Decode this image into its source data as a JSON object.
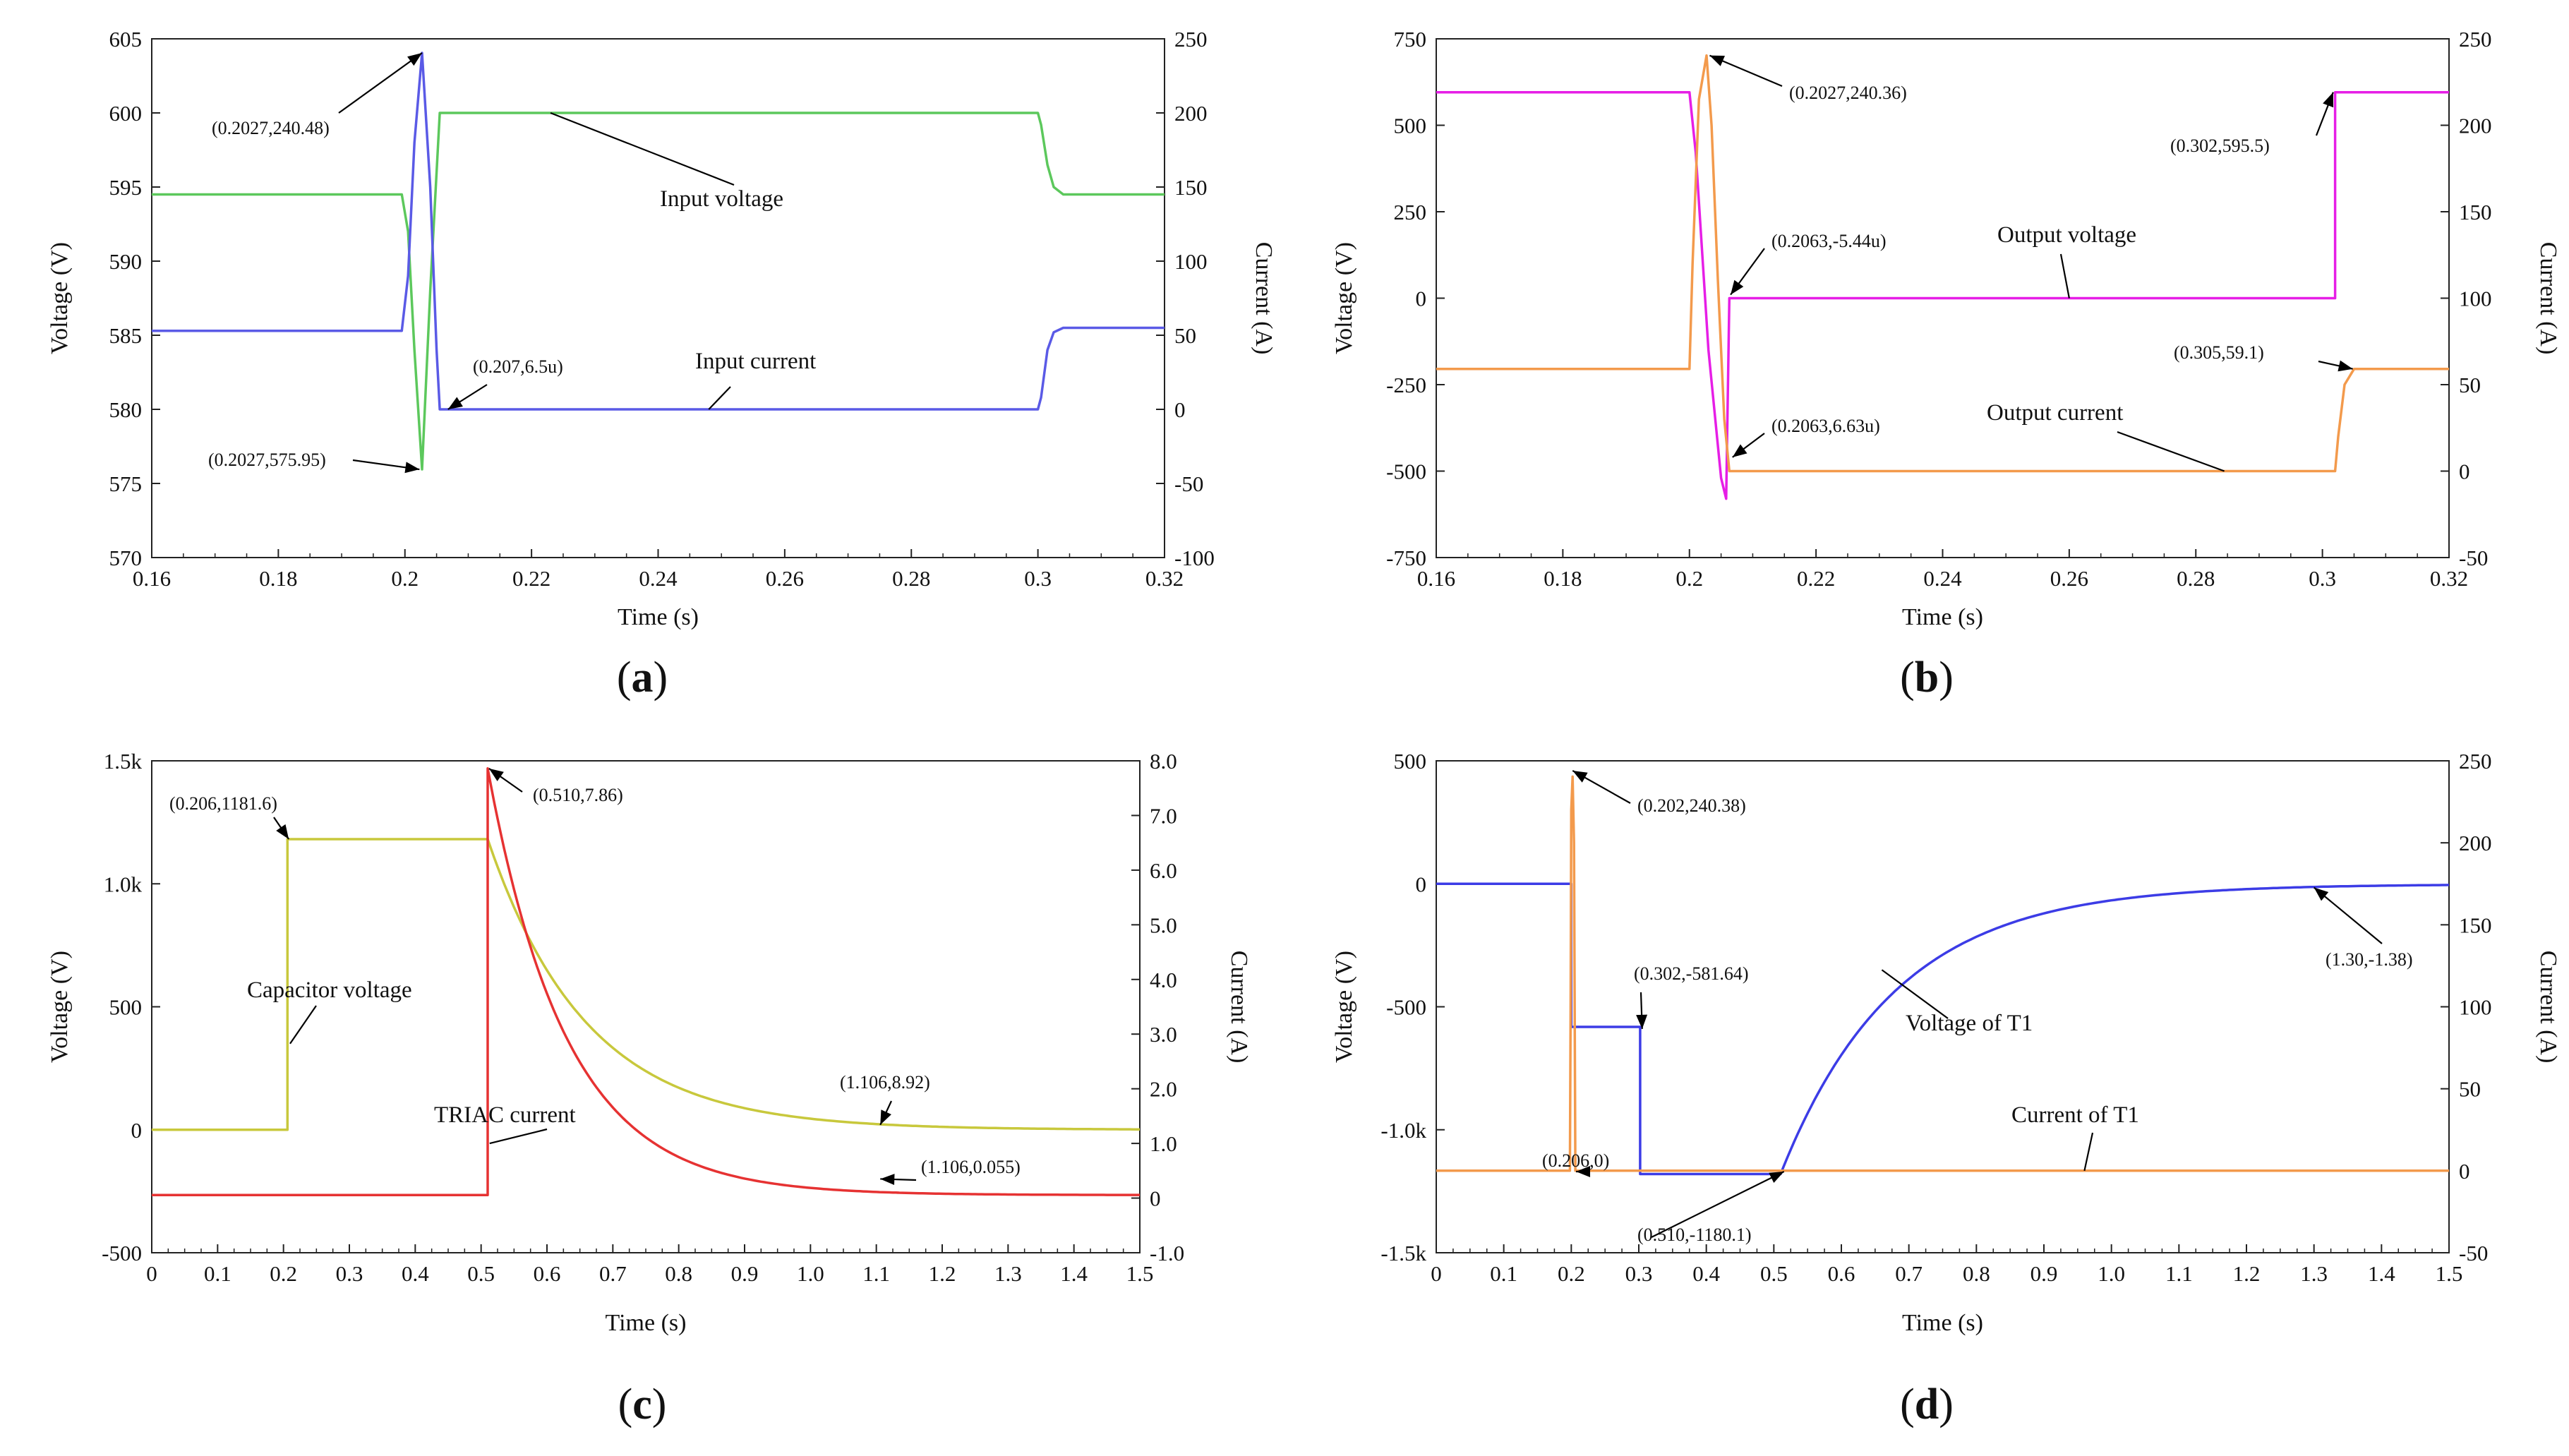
{
  "chart_data": [
    {
      "id": "a",
      "type": "line",
      "caption": "a",
      "xlabel": "Time (s)",
      "ylabel_left": "Voltage (V)",
      "ylabel_right": "Current (A)",
      "xlim": [
        0.16,
        0.32
      ],
      "ylim_left": [
        570,
        605
      ],
      "ylim_right": [
        -100,
        250
      ],
      "xticks": [
        "0.16",
        "0.18",
        "0.2",
        "0.22",
        "0.24",
        "0.26",
        "0.28",
        "0.3",
        "0.32"
      ],
      "yticks_left": [
        "570",
        "575",
        "580",
        "585",
        "590",
        "595",
        "600",
        "605"
      ],
      "yticks_right": [
        "-100",
        "-50",
        "0",
        "50",
        "100",
        "150",
        "200",
        "250"
      ],
      "series": [
        {
          "name": "Input voltage",
          "axis": "left",
          "color": "#5cc85c",
          "x": [
            0.16,
            0.1995,
            0.2005,
            0.2015,
            0.2027,
            0.204,
            0.205,
            0.2055,
            0.3,
            0.3005,
            0.3015,
            0.3025,
            0.304,
            0.32
          ],
          "y": [
            594.5,
            594.5,
            592,
            584,
            575.95,
            588,
            596,
            600,
            600,
            599.2,
            596.5,
            595,
            594.5,
            594.5
          ]
        },
        {
          "name": "Input current",
          "axis": "right",
          "color": "#5a5ae6",
          "x": [
            0.16,
            0.1995,
            0.2005,
            0.2015,
            0.2027,
            0.204,
            0.205,
            0.2055,
            0.3,
            0.3005,
            0.3015,
            0.3025,
            0.304,
            0.32
          ],
          "y": [
            53,
            53,
            90,
            180,
            240.48,
            150,
            40,
            0,
            0,
            8,
            40,
            52,
            55,
            55
          ]
        }
      ],
      "annotations": [
        {
          "text": "(0.2027,240.48)"
        },
        {
          "text": "(0.207,6.5u)"
        },
        {
          "text": "(0.2027,575.95)"
        },
        {
          "text": "Input voltage"
        },
        {
          "text": "Input current"
        }
      ]
    },
    {
      "id": "b",
      "type": "line",
      "caption": "b",
      "xlabel": "Time (s)",
      "ylabel_left": "Voltage (V)",
      "ylabel_right": "Current (A)",
      "xlim": [
        0.16,
        0.32
      ],
      "ylim_left": [
        -750,
        750
      ],
      "ylim_right": [
        -50,
        250
      ],
      "xticks": [
        "0.16",
        "0.18",
        "0.2",
        "0.22",
        "0.24",
        "0.26",
        "0.28",
        "0.3",
        "0.32"
      ],
      "yticks_left": [
        "-750",
        "-500",
        "-250",
        "0",
        "250",
        "500",
        "750"
      ],
      "yticks_right": [
        "-50",
        "0",
        "50",
        "100",
        "150",
        "200",
        "250"
      ],
      "series": [
        {
          "name": "Output voltage",
          "axis": "left",
          "color": "#e61ee6",
          "x": [
            0.16,
            0.2,
            0.201,
            0.203,
            0.205,
            0.2058,
            0.2063,
            0.302,
            0.302,
            0.32
          ],
          "y": [
            595.5,
            595.5,
            420,
            -150,
            -520,
            -580,
            0,
            0,
            595.5,
            595.5
          ]
        },
        {
          "name": "Output current",
          "axis": "right",
          "color": "#f39a4c",
          "x": [
            0.16,
            0.2,
            0.2005,
            0.2015,
            0.2027,
            0.2035,
            0.2045,
            0.2055,
            0.2063,
            0.302,
            0.3025,
            0.3035,
            0.305,
            0.32
          ],
          "y": [
            59.1,
            59.1,
            120,
            215,
            240.36,
            200,
            110,
            30,
            0,
            0,
            20,
            50,
            59.1,
            59.1
          ]
        }
      ],
      "annotations": [
        {
          "text": "(0.2027,240.36)"
        },
        {
          "text": "(0.2063,-5.44u)"
        },
        {
          "text": "(0.2063,6.63u)"
        },
        {
          "text": "(0.302,595.5)"
        },
        {
          "text": "(0.305,59.1)"
        },
        {
          "text": "Output voltage"
        },
        {
          "text": "Output current"
        }
      ]
    },
    {
      "id": "c",
      "type": "line",
      "caption": "c",
      "xlabel": "Time (s)",
      "ylabel_left": "Voltage (V)",
      "ylabel_right": "Current (A)",
      "xlim": [
        0,
        1.5
      ],
      "ylim_left": [
        -500,
        1500
      ],
      "ylim_right": [
        -1.0,
        8.0
      ],
      "xticks": [
        "0",
        "0.1",
        "0.2",
        "0.3",
        "0.4",
        "0.5",
        "0.6",
        "0.7",
        "0.8",
        "0.9",
        "1.0",
        "1.1",
        "1.2",
        "1.3",
        "1.4",
        "1.5"
      ],
      "yticks_left": [
        "-500",
        "0",
        "500",
        "1.0k",
        "1.5k"
      ],
      "yticks_left_values": [
        -500,
        0,
        500,
        1000,
        1500
      ],
      "yticks_right": [
        "-1.0",
        "0",
        "1.0",
        "2.0",
        "3.0",
        "4.0",
        "5.0",
        "6.0",
        "7.0",
        "8.0"
      ],
      "series": [
        {
          "name": "Capacitor voltage",
          "axis": "left",
          "color": "#c8c83c",
          "decay": {
            "t0": 0.206,
            "t1": 0.51,
            "v0": 0,
            "vhigh": 1181.6,
            "tau": 0.15
          }
        },
        {
          "name": "TRIAC current",
          "axis": "right",
          "color": "#e63232",
          "decay": {
            "t0": 0.51,
            "t1": 0.51,
            "v0": 0.055,
            "vhigh": 7.86,
            "tau": 0.12
          }
        }
      ],
      "annotations": [
        {
          "text": "(0.206,1181.6)"
        },
        {
          "text": "(0.510,7.86)"
        },
        {
          "text": "(1.106,8.92)"
        },
        {
          "text": "(1.106,0.055)"
        },
        {
          "text": "Capacitor voltage"
        },
        {
          "text": "TRIAC current"
        }
      ]
    },
    {
      "id": "d",
      "type": "line",
      "caption": "d",
      "xlabel": "Time (s)",
      "ylabel_left": "Voltage (V)",
      "ylabel_right": "Current (A)",
      "xlim": [
        0,
        1.5
      ],
      "ylim_left": [
        -1500,
        500
      ],
      "ylim_right": [
        -50,
        250
      ],
      "xticks": [
        "0",
        "0.1",
        "0.2",
        "0.3",
        "0.4",
        "0.5",
        "0.6",
        "0.7",
        "0.8",
        "0.9",
        "1.0",
        "1.1",
        "1.2",
        "1.3",
        "1.4",
        "1.5"
      ],
      "yticks_left": [
        "-1.5k",
        "-1.0k",
        "-500",
        "0",
        "500"
      ],
      "yticks_left_values": [
        -1500,
        -1000,
        -500,
        0,
        500
      ],
      "yticks_right": [
        "-50",
        "0",
        "50",
        "100",
        "150",
        "200",
        "250"
      ],
      "series": [
        {
          "name": "Voltage of T1",
          "axis": "left",
          "color": "#3c3ce6",
          "piecewise": [
            [
              0,
              0
            ],
            [
              0.2,
              0
            ],
            [
              0.2,
              -581.64
            ],
            [
              0.302,
              -581.64
            ],
            [
              0.302,
              -1180.1
            ],
            [
              0.51,
              -1180.1
            ]
          ],
          "recovery": {
            "t0": 0.51,
            "v0": -1180.1,
            "vend": -1.38,
            "tau": 0.17
          }
        },
        {
          "name": "Current of T1",
          "axis": "right",
          "color": "#f39a4c",
          "x": [
            0,
            0.198,
            0.199,
            0.2,
            0.202,
            0.204,
            0.206,
            1.5
          ],
          "y": [
            0,
            0,
            100,
            220,
            240.38,
            200,
            0,
            0
          ]
        }
      ],
      "annotations": [
        {
          "text": "(0.202,240.38)"
        },
        {
          "text": "(0.302,-581.64)"
        },
        {
          "text": "(0.206,0)"
        },
        {
          "text": "(0.510,-1180.1)"
        },
        {
          "text": "(1.30,-1.38)"
        },
        {
          "text": "Voltage of T1"
        },
        {
          "text": "Current of T1"
        }
      ]
    }
  ]
}
